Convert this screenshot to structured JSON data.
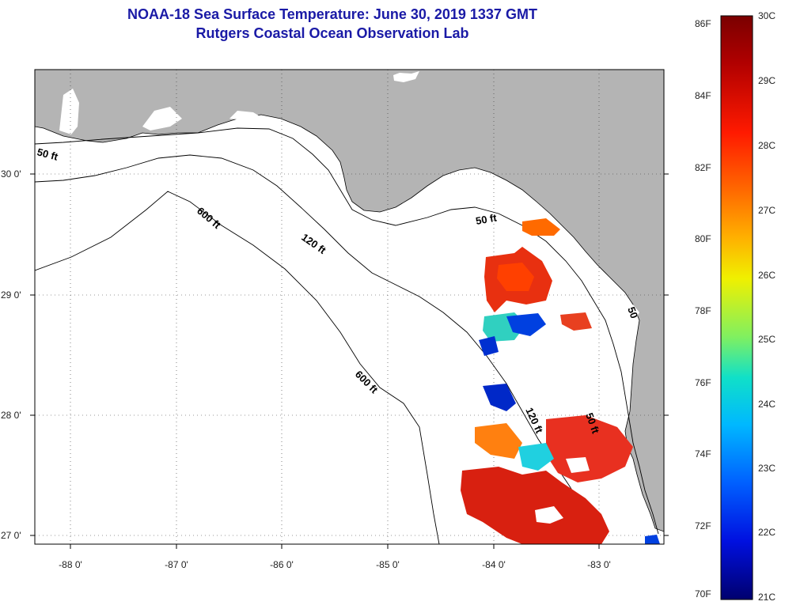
{
  "header": {
    "title": "NOAA-18 Sea Surface Temperature:  June 30, 2019 1337 GMT",
    "subtitle": "Rutgers Coastal Ocean Observation Lab"
  },
  "map": {
    "region": "Eastern Gulf of Mexico / Florida West Coast",
    "lon_range": [
      -88.35,
      -82.5
    ],
    "lat_range": [
      26.98,
      30.88
    ],
    "x_ticks": [
      "-88 0'",
      "-87 0'",
      "-86 0'",
      "-85 0'",
      "-84 0'",
      "-83 0'"
    ],
    "y_ticks": [
      "30 0'",
      "29 0'",
      "28 0'",
      "27 0'"
    ],
    "land_color": "#b4b4b4",
    "water_color": "#ffffff",
    "contour_labels": [
      "50 ft",
      "600 ft",
      "120 ft",
      "50 ft",
      "600 ft",
      "120 ft",
      "50 ft",
      "50"
    ]
  },
  "colorbar": {
    "fahrenheit_labels": [
      "86F",
      "84F",
      "82F",
      "80F",
      "78F",
      "76F",
      "74F",
      "72F",
      "70F"
    ],
    "celsius_labels": [
      "30C",
      "29C",
      "28C",
      "27C",
      "26C",
      "25C",
      "24C",
      "23C",
      "22C",
      "21C"
    ],
    "colors": [
      "#7a0000",
      "#c00000",
      "#ff2000",
      "#ff7000",
      "#ffc000",
      "#f0f000",
      "#90f060",
      "#20e0c0",
      "#00c0ff",
      "#0070ff",
      "#0020e0",
      "#00007a"
    ]
  }
}
